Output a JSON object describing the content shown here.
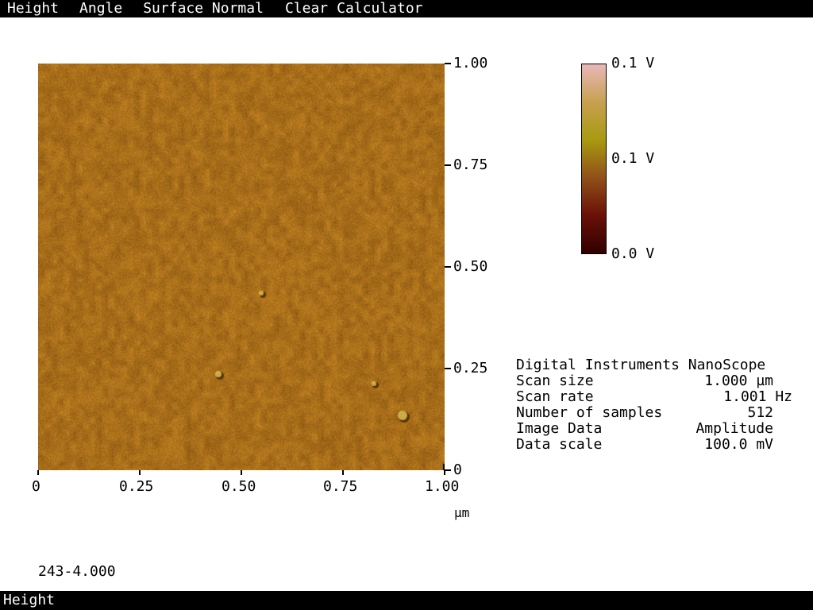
{
  "menu": {
    "items": [
      {
        "id": "height",
        "label": "Height"
      },
      {
        "id": "angle",
        "label": "Angle"
      },
      {
        "id": "surface-normal",
        "label": "Surface Normal"
      },
      {
        "id": "clear",
        "label": "Clear"
      },
      {
        "id": "calculator",
        "label": "Calculator"
      }
    ]
  },
  "chart_data": {
    "type": "heatmap",
    "x_ticks": [
      "0",
      "0.25",
      "0.50",
      "0.75",
      "1.00"
    ],
    "y_ticks": [
      "0",
      "0.25",
      "0.50",
      "0.75",
      "1.00"
    ],
    "xlim": [
      0,
      1
    ],
    "ylim": [
      0,
      1
    ],
    "xlabel": "µm",
    "colorbar": {
      "labels": [
        "0.1 V",
        "0.1 V",
        "0.0 V"
      ],
      "colors": [
        "#e8b8b8",
        "#c8a050",
        "#a89a10",
        "#905018",
        "#6a1008",
        "#300000"
      ]
    },
    "image_base_color": "#a86e1a"
  },
  "info": {
    "title": "Digital Instruments NanoScope",
    "rows": [
      {
        "label": "Scan size",
        "value": "1.000 µm"
      },
      {
        "label": "Scan rate",
        "value": "1.001 Hz"
      },
      {
        "label": "Number of samples",
        "value": "512"
      },
      {
        "label": "Image Data",
        "value": "Amplitude"
      },
      {
        "label": "Data scale",
        "value": "100.0 mV"
      }
    ]
  },
  "file_label": "243-4.000",
  "status": "Height"
}
